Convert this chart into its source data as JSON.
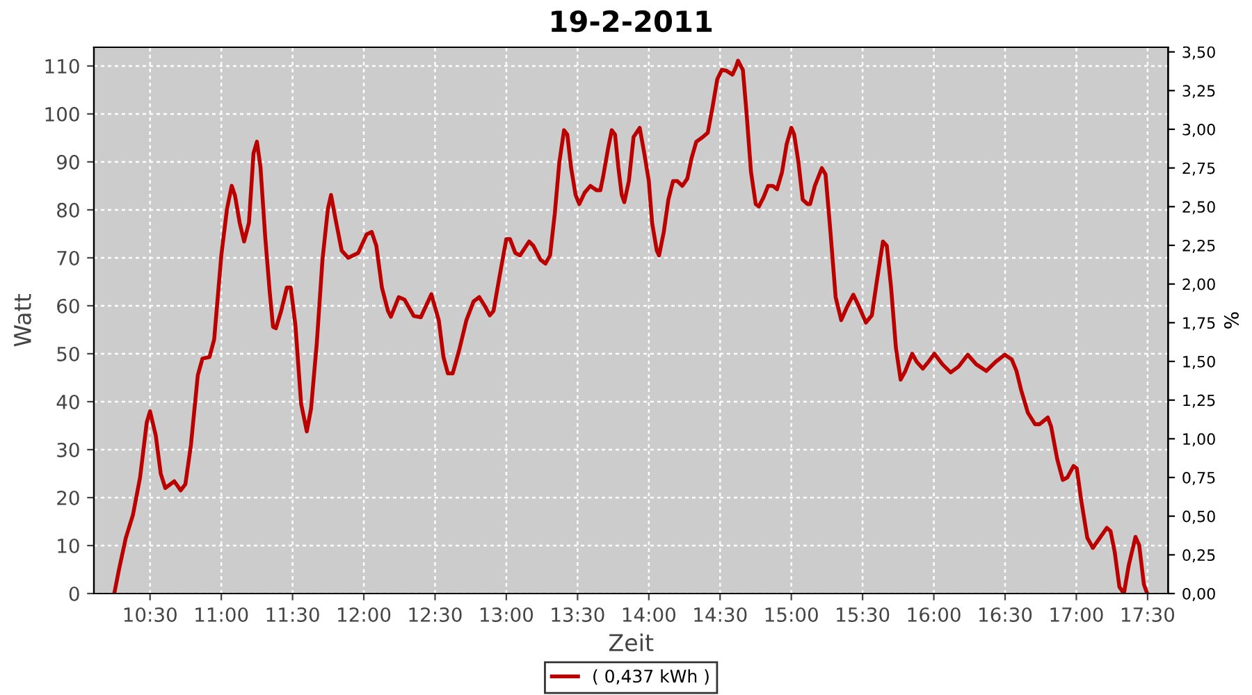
{
  "chart_data": {
    "type": "line",
    "title": "19-2-2011",
    "xlabel": "Zeit",
    "ylabel": "Watt",
    "y2label": "%",
    "xlim": [
      10.106,
      17.644
    ],
    "ylim": [
      0,
      113.9
    ],
    "y2lim": [
      0,
      3.53
    ],
    "xticks": [
      {
        "value": 10.5,
        "label": "10:30"
      },
      {
        "value": 11,
        "label": "11:00"
      },
      {
        "value": 11.5,
        "label": "11:30"
      },
      {
        "value": 12,
        "label": "12:00"
      },
      {
        "value": 12.5,
        "label": "12:30"
      },
      {
        "value": 13,
        "label": "13:00"
      },
      {
        "value": 13.5,
        "label": "13:30"
      },
      {
        "value": 14,
        "label": "14:00"
      },
      {
        "value": 14.5,
        "label": "14:30"
      },
      {
        "value": 15,
        "label": "15:00"
      },
      {
        "value": 15.5,
        "label": "15:30"
      },
      {
        "value": 16,
        "label": "16:00"
      },
      {
        "value": 16.5,
        "label": "16:30"
      },
      {
        "value": 17,
        "label": "17:00"
      },
      {
        "value": 17.5,
        "label": "17:30"
      }
    ],
    "yticks": [
      0,
      10,
      20,
      30,
      40,
      50,
      60,
      70,
      80,
      90,
      100,
      110
    ],
    "y2ticks": [
      {
        "value": 0,
        "label": "0,00"
      },
      {
        "value": 0.25,
        "label": "0,25"
      },
      {
        "value": 0.5,
        "label": "0,50"
      },
      {
        "value": 0.75,
        "label": "0,75"
      },
      {
        "value": 1,
        "label": "1,00"
      },
      {
        "value": 1.25,
        "label": "1,25"
      },
      {
        "value": 1.5,
        "label": "1,50"
      },
      {
        "value": 1.75,
        "label": "1,75"
      },
      {
        "value": 2,
        "label": "2,00"
      },
      {
        "value": 2.25,
        "label": "2,25"
      },
      {
        "value": 2.5,
        "label": "2,50"
      },
      {
        "value": 2.75,
        "label": "2,75"
      },
      {
        "value": 3,
        "label": "3,00"
      },
      {
        "value": 3.25,
        "label": "3,25"
      },
      {
        "value": 3.5,
        "label": "3,50"
      }
    ],
    "grid": true,
    "legend": "bottom",
    "marker": "none",
    "line_style": "solid",
    "series": [
      {
        "name": "( 0,437 kWh )",
        "color": "#bb0000",
        "x": [
          10.249,
          10.282,
          10.33,
          10.38,
          10.43,
          10.477,
          10.5,
          10.54,
          10.575,
          10.607,
          10.67,
          10.715,
          10.748,
          10.787,
          10.835,
          10.868,
          10.917,
          10.95,
          11.0,
          11.04,
          11.073,
          11.096,
          11.129,
          11.16,
          11.194,
          11.226,
          11.25,
          11.275,
          11.308,
          11.34,
          11.363,
          11.383,
          11.42,
          11.46,
          11.487,
          11.52,
          11.56,
          11.6,
          11.63,
          11.67,
          11.71,
          11.748,
          11.77,
          11.8,
          11.845,
          11.89,
          11.96,
          12.02,
          12.055,
          12.088,
          12.127,
          12.17,
          12.19,
          12.245,
          12.285,
          12.35,
          12.4,
          12.474,
          12.526,
          12.559,
          12.59,
          12.624,
          12.673,
          12.72,
          12.77,
          12.81,
          12.85,
          12.884,
          12.91,
          12.95,
          13.0,
          13.026,
          13.063,
          13.096,
          13.16,
          13.19,
          13.24,
          13.275,
          13.307,
          13.34,
          13.372,
          13.405,
          13.428,
          13.454,
          13.486,
          13.512,
          13.55,
          13.59,
          13.633,
          13.66,
          13.68,
          13.714,
          13.74,
          13.763,
          13.786,
          13.81,
          13.828,
          13.86,
          13.893,
          13.936,
          13.968,
          14.0,
          14.023,
          14.056,
          14.072,
          14.105,
          14.137,
          14.17,
          14.2,
          14.235,
          14.27,
          14.3,
          14.333,
          14.38,
          14.414,
          14.447,
          14.48,
          14.512,
          14.545,
          14.587,
          14.61,
          14.626,
          14.66,
          14.685,
          14.717,
          14.75,
          14.772,
          14.805,
          14.837,
          14.87,
          14.9,
          14.935,
          14.967,
          15.0,
          15.02,
          15.05,
          15.08,
          15.114,
          15.132,
          15.165,
          15.214,
          15.24,
          15.272,
          15.311,
          15.35,
          15.393,
          15.435,
          15.474,
          15.523,
          15.565,
          15.598,
          15.643,
          15.67,
          15.7,
          15.734,
          15.767,
          15.8,
          15.848,
          15.88,
          15.923,
          15.962,
          16.004,
          16.06,
          16.118,
          16.173,
          16.238,
          16.297,
          16.368,
          16.433,
          16.498,
          16.547,
          16.58,
          16.612,
          16.66,
          16.71,
          16.742,
          16.8,
          16.823,
          16.866,
          16.905,
          16.937,
          16.98,
          17.003,
          17.035,
          17.077,
          17.116,
          17.165,
          17.214,
          17.24,
          17.269,
          17.302,
          17.334,
          17.367,
          17.415,
          17.441,
          17.474,
          17.497
        ],
        "values": [
          0,
          5,
          11.6,
          16.4,
          24.2,
          35.7,
          38,
          33,
          25,
          22,
          23.4,
          21.5,
          22.8,
          31,
          45.5,
          49,
          49.3,
          53,
          70.5,
          80.2,
          85,
          83,
          77.3,
          73.4,
          77.3,
          91.8,
          94.2,
          88.9,
          74.4,
          62.8,
          55.6,
          55.3,
          58.9,
          63.8,
          63.8,
          56,
          39.6,
          33.8,
          38.6,
          52.2,
          69.6,
          80.2,
          83.1,
          78.3,
          71.5,
          70,
          71,
          74.9,
          75.4,
          72.5,
          63.8,
          58.9,
          57.7,
          61.8,
          61.3,
          57.9,
          57.6,
          62.4,
          57,
          49.3,
          45.9,
          45.9,
          51.2,
          57,
          60.9,
          61.8,
          59.9,
          58,
          58.9,
          65.7,
          73.9,
          73.9,
          71,
          70.5,
          73.4,
          72.5,
          69.6,
          68.8,
          70.5,
          79.2,
          89.9,
          96.6,
          95.7,
          88.9,
          83.1,
          81.2,
          83.6,
          85,
          84.1,
          84.1,
          87,
          92.8,
          96.6,
          95.7,
          88.9,
          83.1,
          81.6,
          86,
          95.2,
          97.1,
          91.8,
          86,
          77.3,
          71.5,
          70.5,
          75.4,
          82.1,
          86,
          86,
          85,
          86.5,
          90.8,
          94.2,
          95.2,
          96.1,
          101.4,
          107.2,
          109.2,
          109,
          108.2,
          109.7,
          111.1,
          109.2,
          100.5,
          87.9,
          81.2,
          80.7,
          82.6,
          85,
          85,
          84.3,
          87.9,
          93.7,
          97.1,
          95.7,
          89.9,
          82.1,
          81.2,
          81.2,
          85,
          88.7,
          87.4,
          76.3,
          61.8,
          57,
          59.9,
          62.3,
          59.9,
          56.5,
          58,
          64.7,
          73.4,
          72.5,
          63.8,
          51.2,
          44.6,
          46.4,
          50,
          48.3,
          46.9,
          48.3,
          50,
          47.8,
          46.1,
          47.3,
          49.8,
          47.8,
          46.4,
          48.3,
          49.8,
          48.8,
          46.4,
          42.5,
          37.7,
          35.3,
          35.3,
          36.7,
          34.8,
          28,
          23.7,
          24.2,
          26.6,
          26.1,
          19.3,
          11.6,
          9.5,
          11.6,
          13.7,
          13,
          8.7,
          1.4,
          0,
          5.8,
          11.8,
          10.1,
          1.9,
          0
        ]
      }
    ]
  }
}
